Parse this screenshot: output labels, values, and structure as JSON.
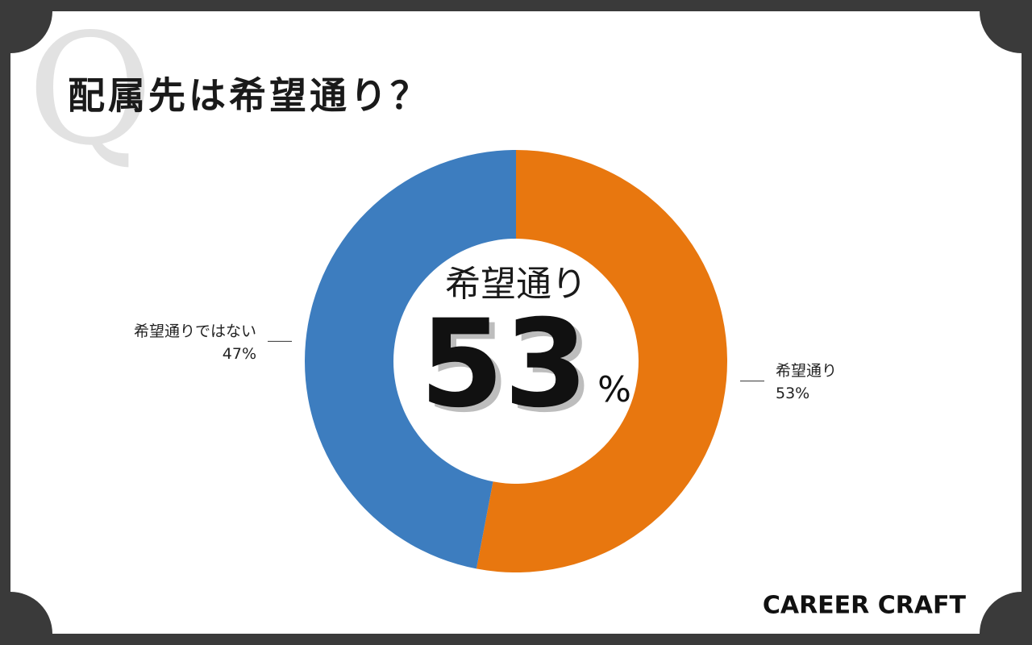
{
  "chart_data": {
    "type": "donut",
    "title": "配属先は希望通り？",
    "watermark": "Q",
    "categories": [
      "希望通り",
      "希望通りではない"
    ],
    "values": [
      53,
      47
    ],
    "value_labels": [
      "53%",
      "47%"
    ],
    "colors": [
      "#e8770f",
      "#3d7dbf"
    ],
    "center_label": "希望通り",
    "center_unit": "%",
    "brand": "CAREER CRAFT"
  }
}
